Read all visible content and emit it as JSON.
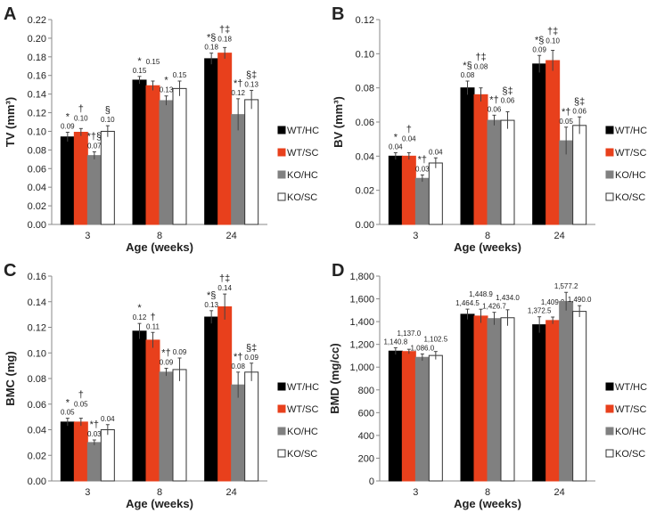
{
  "chart_data": [
    {
      "panel": "A",
      "type": "bar",
      "ylabel": "TV (mm³)",
      "xlabel": "Age (weeks)",
      "categories": [
        "3",
        "8",
        "24"
      ],
      "ylim": [
        0,
        0.22
      ],
      "yticks": [
        "0.00",
        "0.02",
        "0.04",
        "0.06",
        "0.08",
        "0.10",
        "0.12",
        "0.14",
        "0.16",
        "0.18",
        "0.20",
        "0.22"
      ],
      "series": [
        {
          "name": "WT/HC",
          "color": "#000000",
          "values": [
            0.094,
            0.155,
            0.178
          ],
          "errors": [
            0.005,
            0.004,
            0.006
          ],
          "labels": [
            "0.09",
            "0.15",
            "0.18"
          ],
          "marks": [
            "*",
            "*",
            "*§"
          ]
        },
        {
          "name": "WT/SC",
          "color": "#e8401c",
          "values": [
            0.099,
            0.149,
            0.184
          ],
          "errors": [
            0.004,
            0.005,
            0.006
          ],
          "labels": [
            "0.10",
            "0.15",
            "0.18"
          ],
          "marks": [
            "†",
            "",
            "†‡"
          ]
        },
        {
          "name": "KO/HC",
          "color": "#808080",
          "values": [
            0.074,
            0.133,
            0.118
          ],
          "errors": [
            0.004,
            0.005,
            0.017
          ],
          "labels": [
            "0.07",
            "0.13",
            "0.12"
          ],
          "marks": [
            "*†§",
            "*",
            "*†"
          ]
        },
        {
          "name": "KO/SC",
          "color": "#ffffff",
          "values": [
            0.1,
            0.146,
            0.134
          ],
          "errors": [
            0.006,
            0.008,
            0.01
          ],
          "labels": [
            "0.10",
            "0.15",
            "0.13"
          ],
          "marks": [
            "§",
            "",
            "§‡"
          ]
        }
      ]
    },
    {
      "panel": "B",
      "type": "bar",
      "ylabel": "BV (mm³)",
      "xlabel": "Age (weeks)",
      "categories": [
        "3",
        "8",
        "24"
      ],
      "ylim": [
        0,
        0.12
      ],
      "yticks": [
        "0.00",
        "0.02",
        "0.04",
        "0.06",
        "0.08",
        "0.10",
        "0.12"
      ],
      "series": [
        {
          "name": "WT/HC",
          "color": "#000000",
          "values": [
            0.04,
            0.08,
            0.094
          ],
          "errors": [
            0.002,
            0.004,
            0.005
          ],
          "labels": [
            "0.04",
            "0.08",
            "0.09"
          ],
          "marks": [
            "*",
            "*§",
            "*§"
          ]
        },
        {
          "name": "WT/SC",
          "color": "#e8401c",
          "values": [
            0.04,
            0.076,
            0.096
          ],
          "errors": [
            0.002,
            0.004,
            0.006
          ],
          "labels": [
            "0.04",
            "0.08",
            "0.10"
          ],
          "marks": [
            "†",
            "†‡",
            "†‡"
          ]
        },
        {
          "name": "KO/HC",
          "color": "#808080",
          "values": [
            0.027,
            0.061,
            0.049
          ],
          "errors": [
            0.002,
            0.003,
            0.008
          ],
          "labels": [
            "0.03",
            "0.06",
            "0.05"
          ],
          "marks": [
            "*†",
            "*†",
            "*†"
          ]
        },
        {
          "name": "KO/SC",
          "color": "#ffffff",
          "values": [
            0.036,
            0.061,
            0.058
          ],
          "errors": [
            0.003,
            0.005,
            0.005
          ],
          "labels": [
            "0.04",
            "0.06",
            "0.06"
          ],
          "marks": [
            "",
            "§‡",
            "§‡"
          ]
        }
      ]
    },
    {
      "panel": "C",
      "type": "bar",
      "ylabel": "BMC (mg)",
      "xlabel": "Age (weeks)",
      "categories": [
        "3",
        "8",
        "24"
      ],
      "ylim": [
        0,
        0.16
      ],
      "yticks": [
        "0.00",
        "0.02",
        "0.04",
        "0.06",
        "0.08",
        "0.10",
        "0.12",
        "0.14",
        "0.16"
      ],
      "series": [
        {
          "name": "WT/HC",
          "color": "#000000",
          "values": [
            0.046,
            0.117,
            0.128
          ],
          "errors": [
            0.003,
            0.006,
            0.005
          ],
          "labels": [
            "0.05",
            "0.12",
            "0.13"
          ],
          "marks": [
            "*",
            "*",
            "*§"
          ]
        },
        {
          "name": "WT/SC",
          "color": "#e8401c",
          "values": [
            0.046,
            0.11,
            0.136
          ],
          "errors": [
            0.003,
            0.006,
            0.01
          ],
          "labels": [
            "0.05",
            "0.11",
            "0.14"
          ],
          "marks": [
            "†",
            "†",
            "†‡"
          ]
        },
        {
          "name": "KO/HC",
          "color": "#808080",
          "values": [
            0.03,
            0.085,
            0.075
          ],
          "errors": [
            0.002,
            0.003,
            0.01
          ],
          "labels": [
            "0.03",
            "0.09",
            "0.08"
          ],
          "marks": [
            "*†",
            "*†",
            "*†"
          ]
        },
        {
          "name": "KO/SC",
          "color": "#ffffff",
          "values": [
            0.04,
            0.087,
            0.085
          ],
          "errors": [
            0.004,
            0.009,
            0.007
          ],
          "labels": [
            "0.04",
            "0.09",
            "0.09"
          ],
          "marks": [
            "",
            "",
            "§‡"
          ]
        }
      ]
    },
    {
      "panel": "D",
      "type": "bar",
      "ylabel": "BMD (mg/cc)",
      "xlabel": "Age (weeks)",
      "categories": [
        "3",
        "8",
        "24"
      ],
      "ylim": [
        0,
        1800
      ],
      "yticks": [
        "0",
        "200",
        "400",
        "600",
        "800",
        "1,000",
        "1,200",
        "1,400",
        "1,600",
        "1,800"
      ],
      "series": [
        {
          "name": "WT/HC",
          "color": "#000000",
          "values": [
            1140.8,
            1464.5,
            1372.5
          ],
          "errors": [
            30,
            45,
            70
          ],
          "labels": [
            "1,140.8",
            "1,464.5",
            "1,372.5"
          ],
          "marks": [
            "",
            "",
            ""
          ]
        },
        {
          "name": "WT/SC",
          "color": "#e8401c",
          "values": [
            1137.0,
            1448.9,
            1409.9
          ],
          "errors": [
            20,
            60,
            30
          ],
          "labels": [
            "1,137.0",
            "1,448.9",
            "1,409.9"
          ],
          "marks": [
            "",
            "",
            ""
          ]
        },
        {
          "name": "KO/HC",
          "color": "#808080",
          "values": [
            1086.0,
            1426.7,
            1577.2
          ],
          "errors": [
            30,
            55,
            80
          ],
          "labels": [
            "1,086.0",
            "1,426.7",
            "1,577.2"
          ],
          "marks": [
            "",
            "",
            ""
          ]
        },
        {
          "name": "KO/SC",
          "color": "#ffffff",
          "values": [
            1102.5,
            1434.0,
            1490.0
          ],
          "errors": [
            35,
            70,
            50
          ],
          "labels": [
            "1,102.5",
            "1,434.0",
            "1,490.0"
          ],
          "marks": [
            "",
            "",
            ""
          ]
        }
      ]
    }
  ]
}
